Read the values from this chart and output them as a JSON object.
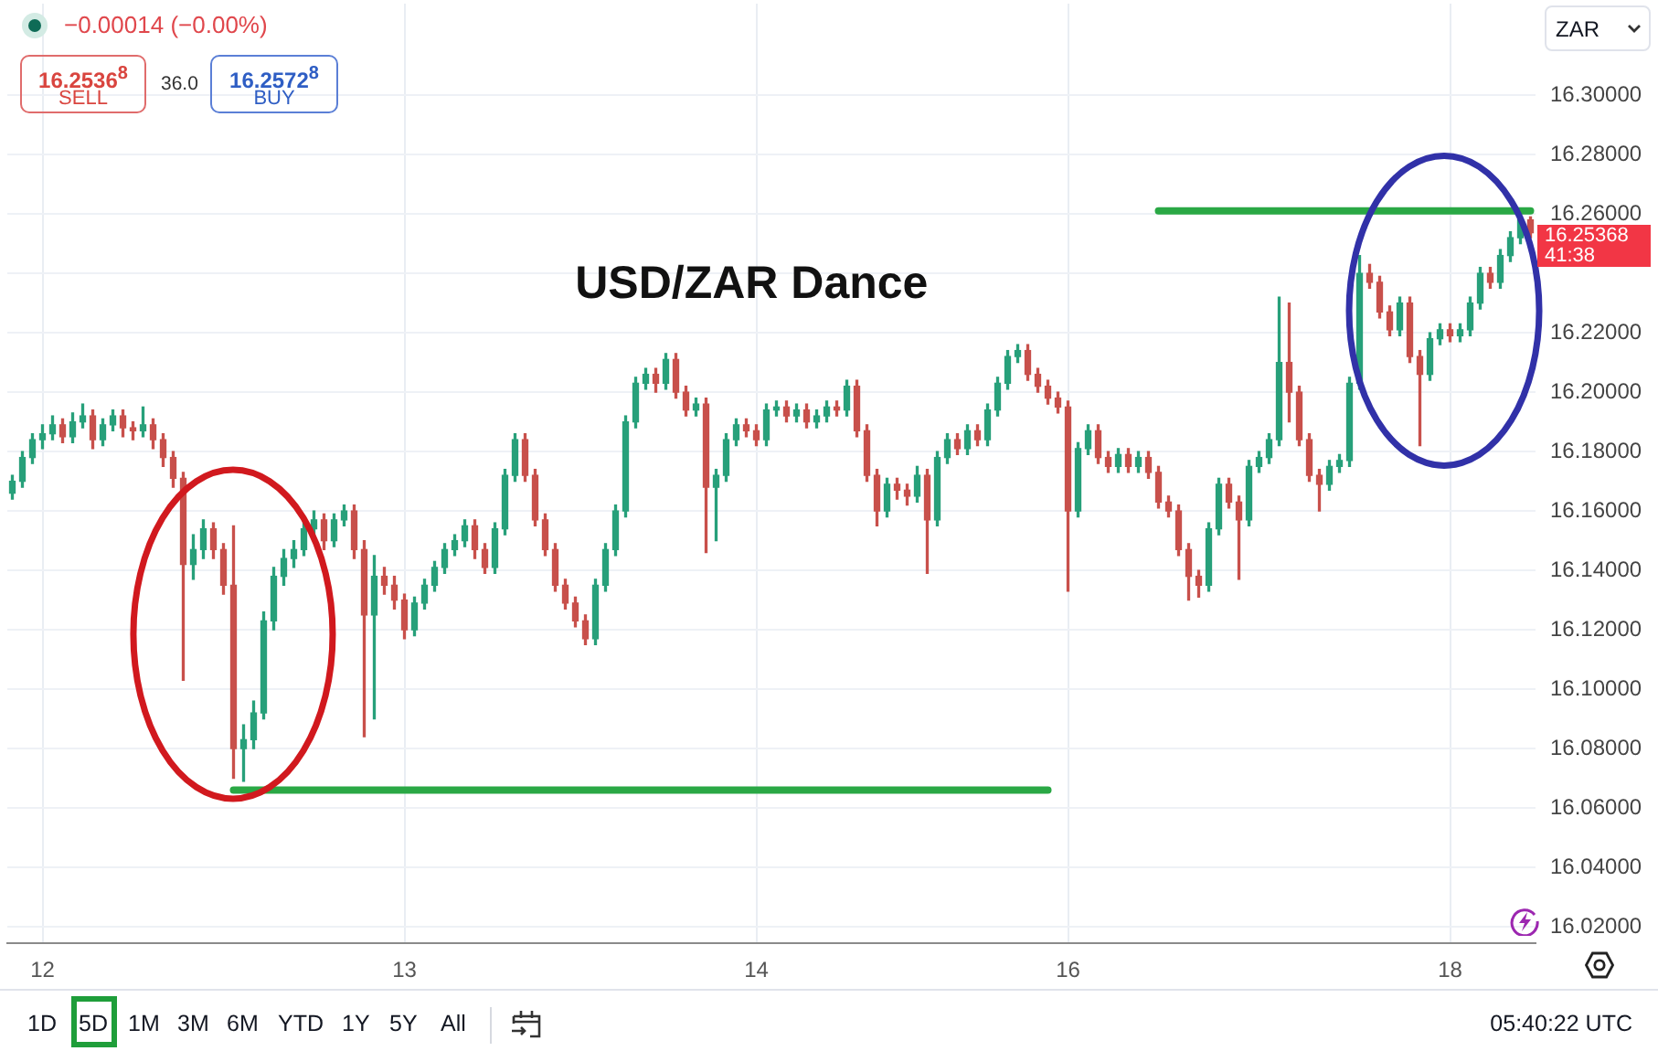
{
  "chart_data": {
    "type": "candlestick",
    "title": "USD/ZAR Dance",
    "categories": [
      null,
      null,
      null,
      "12",
      null,
      null,
      null,
      null,
      null,
      null,
      null,
      null,
      null,
      null,
      null,
      null,
      null,
      null,
      null,
      null,
      null,
      null,
      null,
      null,
      null,
      null,
      null,
      null,
      null,
      null,
      null,
      null,
      null,
      null,
      null,
      null,
      null,
      null,
      null,
      "13",
      null,
      null,
      null,
      null,
      null,
      null,
      null,
      null,
      null,
      null,
      null,
      null,
      null,
      null,
      null,
      null,
      null,
      null,
      null,
      null,
      null,
      null,
      null,
      null,
      null,
      null,
      null,
      null,
      null,
      null,
      null,
      null,
      null,
      null,
      "14",
      null,
      null,
      null,
      null,
      null,
      null,
      null,
      null,
      null,
      null,
      null,
      null,
      null,
      null,
      null,
      null,
      null,
      null,
      null,
      null,
      null,
      null,
      null,
      null,
      null,
      null,
      null,
      null,
      null,
      null,
      "16",
      null,
      null,
      null,
      null,
      null,
      null,
      null,
      null,
      null,
      null,
      null,
      null,
      null,
      null,
      null,
      null,
      null,
      null,
      null,
      null,
      null,
      null,
      null,
      null,
      null,
      null,
      null,
      null,
      null,
      null,
      null,
      null,
      null,
      null,
      null,
      null,
      null,
      "18",
      null,
      null,
      null,
      null,
      null,
      null,
      null,
      null
    ],
    "series": [
      {
        "ohlc": [
          [
            16.166,
            16.172,
            16.164,
            16.17
          ],
          [
            16.17,
            16.18,
            16.168,
            16.178
          ],
          [
            16.178,
            16.186,
            16.176,
            16.184
          ],
          [
            16.184,
            16.189,
            16.181,
            16.186
          ],
          [
            16.186,
            16.192,
            16.184,
            16.189
          ],
          [
            16.189,
            16.191,
            16.183,
            16.185
          ],
          [
            16.185,
            16.193,
            16.183,
            16.19
          ],
          [
            16.19,
            16.196,
            16.188,
            16.192
          ],
          [
            16.192,
            16.194,
            16.181,
            16.184
          ],
          [
            16.184,
            16.191,
            16.182,
            16.189
          ],
          [
            16.189,
            16.194,
            16.187,
            16.192
          ],
          [
            16.192,
            16.194,
            16.185,
            16.188
          ],
          [
            16.188,
            16.19,
            16.184,
            16.187
          ],
          [
            16.187,
            16.195,
            16.185,
            16.189
          ],
          [
            16.189,
            16.191,
            16.181,
            16.184
          ],
          [
            16.184,
            16.186,
            16.175,
            16.178
          ],
          [
            16.178,
            16.18,
            16.168,
            16.171
          ],
          [
            16.171,
            16.173,
            16.103,
            16.142
          ],
          [
            16.142,
            16.152,
            16.137,
            16.147
          ],
          [
            16.147,
            16.157,
            16.144,
            16.154
          ],
          [
            16.154,
            16.156,
            16.144,
            16.147
          ],
          [
            16.147,
            16.149,
            16.132,
            16.135
          ],
          [
            16.135,
            16.155,
            16.07,
            16.08
          ],
          [
            16.08,
            16.088,
            16.069,
            16.083
          ],
          [
            16.083,
            16.096,
            16.08,
            16.092
          ],
          [
            16.092,
            16.126,
            16.09,
            16.123
          ],
          [
            16.123,
            16.141,
            16.12,
            16.138
          ],
          [
            16.138,
            16.147,
            16.135,
            16.144
          ],
          [
            16.144,
            16.15,
            16.141,
            16.147
          ],
          [
            16.147,
            16.157,
            16.145,
            16.154
          ],
          [
            16.154,
            16.16,
            16.152,
            16.157
          ],
          [
            16.157,
            16.159,
            16.147,
            16.15
          ],
          [
            16.15,
            16.159,
            16.148,
            16.157
          ],
          [
            16.157,
            16.162,
            16.155,
            16.16
          ],
          [
            16.16,
            16.162,
            16.144,
            16.147
          ],
          [
            16.147,
            16.15,
            16.084,
            16.125
          ],
          [
            16.125,
            16.145,
            16.09,
            16.138
          ],
          [
            16.138,
            16.141,
            16.132,
            16.135
          ],
          [
            16.135,
            16.138,
            16.127,
            16.13
          ],
          [
            16.13,
            16.132,
            16.117,
            16.12
          ],
          [
            16.12,
            16.131,
            16.118,
            16.129
          ],
          [
            16.129,
            16.137,
            16.127,
            16.135
          ],
          [
            16.135,
            16.143,
            16.133,
            16.141
          ],
          [
            16.141,
            16.149,
            16.139,
            16.147
          ],
          [
            16.147,
            16.152,
            16.145,
            16.15
          ],
          [
            16.15,
            16.157,
            16.148,
            16.155
          ],
          [
            16.155,
            16.157,
            16.144,
            16.147
          ],
          [
            16.147,
            16.149,
            16.139,
            16.141
          ],
          [
            16.141,
            16.156,
            16.139,
            16.154
          ],
          [
            16.154,
            16.174,
            16.152,
            16.172
          ],
          [
            16.172,
            16.186,
            16.17,
            16.184
          ],
          [
            16.184,
            16.186,
            16.17,
            16.172
          ],
          [
            16.172,
            16.174,
            16.155,
            16.157
          ],
          [
            16.157,
            16.159,
            16.145,
            16.147
          ],
          [
            16.147,
            16.149,
            16.133,
            16.135
          ],
          [
            16.135,
            16.137,
            16.127,
            16.129
          ],
          [
            16.129,
            16.131,
            16.121,
            16.123
          ],
          [
            16.123,
            16.125,
            16.115,
            16.117
          ],
          [
            16.117,
            16.137,
            16.115,
            16.135
          ],
          [
            16.135,
            16.149,
            16.133,
            16.147
          ],
          [
            16.147,
            16.162,
            16.145,
            16.16
          ],
          [
            16.16,
            16.192,
            16.158,
            16.19
          ],
          [
            16.19,
            16.205,
            16.188,
            16.203
          ],
          [
            16.203,
            16.208,
            16.201,
            16.206
          ],
          [
            16.206,
            16.208,
            16.2,
            16.203
          ],
          [
            16.203,
            16.213,
            16.201,
            16.211
          ],
          [
            16.211,
            16.213,
            16.198,
            16.2
          ],
          [
            16.2,
            16.202,
            16.192,
            16.194
          ],
          [
            16.194,
            16.198,
            16.192,
            16.196
          ],
          [
            16.196,
            16.198,
            16.146,
            16.168
          ],
          [
            16.168,
            16.174,
            16.15,
            16.172
          ],
          [
            16.172,
            16.186,
            16.17,
            16.184
          ],
          [
            16.184,
            16.191,
            16.182,
            16.189
          ],
          [
            16.189,
            16.191,
            16.185,
            16.187
          ],
          [
            16.187,
            16.189,
            16.182,
            16.184
          ],
          [
            16.184,
            16.196,
            16.182,
            16.194
          ],
          [
            16.194,
            16.197,
            16.192,
            16.195
          ],
          [
            16.195,
            16.197,
            16.19,
            16.192
          ],
          [
            16.192,
            16.196,
            16.19,
            16.194
          ],
          [
            16.194,
            16.196,
            16.188,
            16.19
          ],
          [
            16.19,
            16.194,
            16.188,
            16.192
          ],
          [
            16.192,
            16.197,
            16.19,
            16.195
          ],
          [
            16.195,
            16.197,
            16.192,
            16.194
          ],
          [
            16.194,
            16.204,
            16.192,
            16.202
          ],
          [
            16.202,
            16.204,
            16.185,
            16.187
          ],
          [
            16.187,
            16.189,
            16.17,
            16.172
          ],
          [
            16.172,
            16.174,
            16.155,
            16.16
          ],
          [
            16.16,
            16.171,
            16.158,
            16.169
          ],
          [
            16.169,
            16.171,
            16.164,
            16.167
          ],
          [
            16.167,
            16.169,
            16.162,
            16.165
          ],
          [
            16.165,
            16.175,
            16.163,
            16.172
          ],
          [
            16.172,
            16.174,
            16.139,
            16.157
          ],
          [
            16.157,
            16.18,
            16.155,
            16.178
          ],
          [
            16.178,
            16.186,
            16.176,
            16.184
          ],
          [
            16.184,
            16.186,
            16.179,
            16.181
          ],
          [
            16.181,
            16.189,
            16.179,
            16.187
          ],
          [
            16.187,
            16.189,
            16.182,
            16.184
          ],
          [
            16.184,
            16.196,
            16.182,
            16.194
          ],
          [
            16.194,
            16.205,
            16.192,
            16.203
          ],
          [
            16.203,
            16.214,
            16.201,
            16.212
          ],
          [
            16.212,
            16.216,
            16.21,
            16.214
          ],
          [
            16.214,
            16.216,
            16.204,
            16.206
          ],
          [
            16.206,
            16.208,
            16.2,
            16.202
          ],
          [
            16.202,
            16.204,
            16.196,
            16.198
          ],
          [
            16.198,
            16.2,
            16.193,
            16.195
          ],
          [
            16.195,
            16.197,
            16.133,
            16.16
          ],
          [
            16.16,
            16.183,
            16.158,
            16.181
          ],
          [
            16.181,
            16.189,
            16.179,
            16.187
          ],
          [
            16.187,
            16.189,
            16.176,
            16.178
          ],
          [
            16.178,
            16.18,
            16.173,
            16.175
          ],
          [
            16.175,
            16.181,
            16.173,
            16.179
          ],
          [
            16.179,
            16.181,
            16.173,
            16.175
          ],
          [
            16.175,
            16.18,
            16.173,
            16.178
          ],
          [
            16.178,
            16.18,
            16.171,
            16.173
          ],
          [
            16.173,
            16.175,
            16.161,
            16.163
          ],
          [
            16.163,
            16.165,
            16.158,
            16.16
          ],
          [
            16.16,
            16.162,
            16.145,
            16.147
          ],
          [
            16.147,
            16.149,
            16.13,
            16.138
          ],
          [
            16.138,
            16.14,
            16.131,
            16.135
          ],
          [
            16.135,
            16.156,
            16.133,
            16.154
          ],
          [
            16.154,
            16.171,
            16.152,
            16.169
          ],
          [
            16.169,
            16.171,
            16.161,
            16.163
          ],
          [
            16.163,
            16.165,
            16.137,
            16.157
          ],
          [
            16.157,
            16.177,
            16.155,
            16.175
          ],
          [
            16.175,
            16.18,
            16.173,
            16.178
          ],
          [
            16.178,
            16.186,
            16.176,
            16.184
          ],
          [
            16.184,
            16.232,
            16.182,
            16.21
          ],
          [
            16.21,
            16.23,
            16.19,
            16.2
          ],
          [
            16.2,
            16.202,
            16.182,
            16.184
          ],
          [
            16.184,
            16.186,
            16.17,
            16.172
          ],
          [
            16.172,
            16.174,
            16.16,
            16.169
          ],
          [
            16.169,
            16.177,
            16.167,
            16.175
          ],
          [
            16.175,
            16.179,
            16.173,
            16.177
          ],
          [
            16.177,
            16.205,
            16.175,
            16.203
          ],
          [
            16.203,
            16.246,
            16.201,
            16.24
          ],
          [
            16.24,
            16.243,
            16.235,
            16.237
          ],
          [
            16.237,
            16.239,
            16.225,
            16.227
          ],
          [
            16.227,
            16.229,
            16.219,
            16.221
          ],
          [
            16.221,
            16.232,
            16.219,
            16.23
          ],
          [
            16.23,
            16.232,
            16.21,
            16.212
          ],
          [
            16.212,
            16.214,
            16.182,
            16.206
          ],
          [
            16.206,
            16.22,
            16.204,
            16.218
          ],
          [
            16.218,
            16.223,
            16.216,
            16.221
          ],
          [
            16.221,
            16.223,
            16.217,
            16.219
          ],
          [
            16.219,
            16.223,
            16.217,
            16.221
          ],
          [
            16.221,
            16.232,
            16.219,
            16.23
          ],
          [
            16.23,
            16.242,
            16.228,
            16.24
          ],
          [
            16.24,
            16.242,
            16.235,
            16.237
          ],
          [
            16.237,
            16.248,
            16.235,
            16.246
          ],
          [
            16.246,
            16.254,
            16.244,
            16.252
          ],
          [
            16.252,
            16.259,
            16.25,
            16.258
          ],
          [
            16.258,
            16.259,
            16.252,
            16.25368
          ]
        ],
        "colors": [
          "#27a07a",
          "#27a07a",
          "#27a07a",
          "#27a07a",
          "#27a07a",
          "#c8504b",
          "#27a07a",
          "#27a07a",
          "#c8504b",
          "#27a07a",
          "#27a07a",
          "#c8504b",
          "#c8504b",
          "#27a07a",
          "#c8504b",
          "#c8504b",
          "#c8504b",
          "#c8504b",
          "#27a07a",
          "#27a07a",
          "#c8504b",
          "#c8504b",
          "#c8504b",
          "#27a07a",
          "#27a07a",
          "#27a07a",
          "#27a07a",
          "#27a07a",
          "#27a07a",
          "#27a07a",
          "#27a07a",
          "#c8504b",
          "#27a07a",
          "#27a07a",
          "#c8504b",
          "#c8504b",
          "#27a07a",
          "#c8504b",
          "#c8504b",
          "#c8504b",
          "#27a07a",
          "#27a07a",
          "#27a07a",
          "#27a07a",
          "#27a07a",
          "#27a07a",
          "#c8504b",
          "#c8504b",
          "#27a07a",
          "#27a07a",
          "#27a07a",
          "#c8504b",
          "#c8504b",
          "#c8504b",
          "#c8504b",
          "#c8504b",
          "#c8504b",
          "#c8504b",
          "#27a07a",
          "#27a07a",
          "#27a07a",
          "#27a07a",
          "#27a07a",
          "#27a07a",
          "#c8504b",
          "#27a07a",
          "#c8504b",
          "#c8504b",
          "#27a07a",
          "#c8504b",
          "#27a07a",
          "#27a07a",
          "#27a07a",
          "#c8504b",
          "#c8504b",
          "#27a07a",
          "#27a07a",
          "#c8504b",
          "#27a07a",
          "#c8504b",
          "#27a07a",
          "#27a07a",
          "#c8504b",
          "#27a07a",
          "#c8504b",
          "#c8504b",
          "#c8504b",
          "#27a07a",
          "#c8504b",
          "#c8504b",
          "#27a07a",
          "#c8504b",
          "#27a07a",
          "#27a07a",
          "#c8504b",
          "#27a07a",
          "#c8504b",
          "#27a07a",
          "#27a07a",
          "#27a07a",
          "#27a07a",
          "#c8504b",
          "#c8504b",
          "#c8504b",
          "#c8504b",
          "#c8504b",
          "#27a07a",
          "#27a07a",
          "#c8504b",
          "#c8504b",
          "#27a07a",
          "#c8504b",
          "#27a07a",
          "#c8504b",
          "#c8504b",
          "#c8504b",
          "#c8504b",
          "#c8504b",
          "#c8504b",
          "#27a07a",
          "#27a07a",
          "#c8504b",
          "#c8504b",
          "#27a07a",
          "#27a07a",
          "#27a07a",
          "#27a07a",
          "#c8504b",
          "#c8504b",
          "#c8504b",
          "#c8504b",
          "#27a07a",
          "#27a07a",
          "#27a07a",
          "#27a07a",
          "#c8504b",
          "#c8504b",
          "#c8504b",
          "#27a07a",
          "#c8504b",
          "#c8504b",
          "#27a07a",
          "#27a07a",
          "#c8504b",
          "#27a07a",
          "#27a07a",
          "#27a07a",
          "#c8504b",
          "#27a07a",
          "#27a07a",
          "#27a07a",
          "#c8504b"
        ]
      },
      {
        "type": "line",
        "color": "#2aa845",
        "values": [
          null,
          null,
          null,
          null,
          null,
          null,
          null,
          null,
          null,
          null,
          null,
          null,
          null,
          null,
          null,
          null,
          null,
          null,
          null,
          null,
          null,
          null,
          16.066,
          16.066,
          16.066,
          16.066,
          16.066,
          16.066,
          16.066,
          16.066,
          16.066,
          16.066,
          16.066,
          16.066,
          16.066,
          16.066,
          16.066,
          16.066,
          16.066,
          16.066,
          16.066,
          16.066,
          16.066,
          16.066,
          16.066,
          16.066,
          16.066,
          16.066,
          16.066,
          16.066,
          16.066,
          16.066,
          16.066,
          16.066,
          16.066,
          16.066,
          16.066,
          16.066,
          16.066,
          16.066,
          16.066,
          16.066,
          16.066,
          16.066,
          16.066,
          16.066,
          16.066,
          16.066,
          16.066,
          16.066,
          16.066,
          16.066,
          16.066,
          16.066,
          16.066,
          16.066,
          16.066,
          16.066,
          16.066,
          16.066,
          16.066,
          16.066,
          16.066,
          16.066,
          16.066,
          16.066,
          16.066,
          16.066,
          16.066,
          16.066,
          16.066,
          16.066,
          16.066,
          16.066,
          16.066,
          16.066,
          16.066,
          16.066,
          16.066,
          16.066,
          16.066,
          16.066,
          16.066,
          16.066,
          null,
          null,
          null,
          null,
          null,
          null,
          null,
          null,
          null,
          null,
          null,
          null,
          null,
          null,
          null,
          null,
          null,
          null,
          null,
          null,
          null,
          null,
          null,
          null,
          null,
          null,
          null,
          null,
          null,
          null,
          null,
          null,
          null,
          null,
          null,
          null,
          null,
          null,
          null,
          null,
          null,
          null,
          null,
          null,
          null,
          null,
          null,
          null
        ]
      },
      {
        "type": "line",
        "color": "#2aa845",
        "values": [
          null,
          null,
          null,
          null,
          null,
          null,
          null,
          null,
          null,
          null,
          null,
          null,
          null,
          null,
          null,
          null,
          null,
          null,
          null,
          null,
          null,
          null,
          null,
          null,
          null,
          null,
          null,
          null,
          null,
          null,
          null,
          null,
          null,
          null,
          null,
          null,
          null,
          null,
          null,
          null,
          null,
          null,
          null,
          null,
          null,
          null,
          null,
          null,
          null,
          null,
          null,
          null,
          null,
          null,
          null,
          null,
          null,
          null,
          null,
          null,
          null,
          null,
          null,
          null,
          null,
          null,
          null,
          null,
          null,
          null,
          null,
          null,
          null,
          null,
          null,
          null,
          null,
          null,
          null,
          null,
          null,
          null,
          null,
          null,
          null,
          null,
          null,
          null,
          null,
          null,
          null,
          null,
          null,
          null,
          null,
          null,
          null,
          null,
          null,
          null,
          null,
          null,
          null,
          null,
          null,
          null,
          null,
          null,
          null,
          null,
          null,
          null,
          null,
          null,
          16.261,
          16.261,
          16.261,
          16.261,
          16.261,
          16.261,
          16.261,
          16.261,
          16.261,
          16.261,
          16.261,
          16.261,
          16.261,
          16.261,
          16.261,
          16.261,
          16.261,
          16.261,
          16.261,
          16.261,
          16.261,
          16.261,
          16.261,
          16.261,
          16.261,
          16.261,
          16.261,
          16.261,
          16.261,
          16.261,
          16.261,
          16.261,
          16.261,
          16.261,
          16.261,
          16.261,
          16.261,
          16.261
        ]
      }
    ],
    "ylim": [
      16.0145,
      16.3308
    ],
    "yticks": [
      {
        "value": 16.02,
        "label": "16.02000"
      },
      {
        "value": 16.04,
        "label": "16.04000"
      },
      {
        "value": 16.06,
        "label": "16.06000"
      },
      {
        "value": 16.08,
        "label": "16.08000"
      },
      {
        "value": 16.1,
        "label": "16.10000"
      },
      {
        "value": 16.12,
        "label": "16.12000"
      },
      {
        "value": 16.14,
        "label": "16.14000"
      },
      {
        "value": 16.16,
        "label": "16.16000"
      },
      {
        "value": 16.18,
        "label": "16.18000"
      },
      {
        "value": 16.2,
        "label": "16.20000"
      },
      {
        "value": 16.22,
        "label": "16.22000"
      },
      {
        "value": 16.24,
        "label": null
      },
      {
        "value": 16.26,
        "label": "16.26000"
      },
      {
        "value": 16.28,
        "label": "16.28000"
      },
      {
        "value": 16.3,
        "label": "16.30000"
      }
    ],
    "grid": true,
    "marker": "none",
    "annotations": [
      "−0.00014 (−0.00%)",
      "16.2536$^{8}$",
      "SELL",
      "36.0",
      "16.2572$^{8}$",
      "BUY",
      "ZAR",
      "16.25368",
      "41:38",
      "1D",
      "5D",
      "1M",
      "3M",
      "6M",
      "YTD",
      "1Y",
      "5Y",
      "All",
      "05:40:22 UTC"
    ]
  }
}
